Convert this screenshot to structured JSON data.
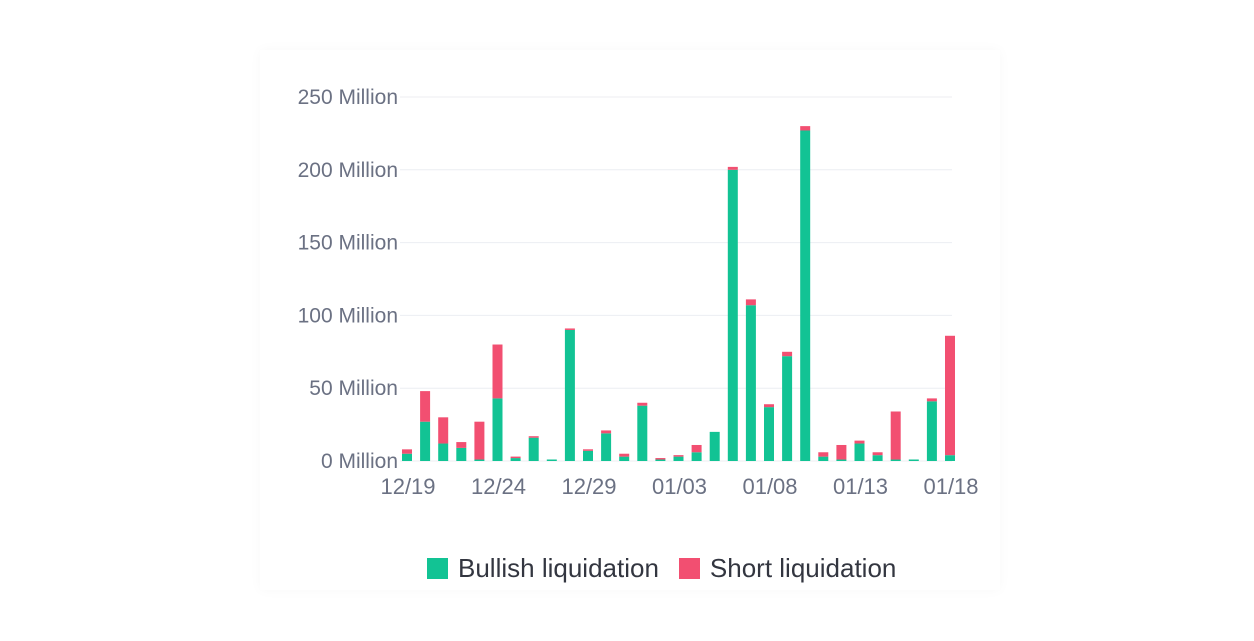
{
  "colors": {
    "bullish": "#12c394",
    "short": "#f24f71",
    "grid": "#eceef2",
    "axis_text": "#6b7183"
  },
  "legend": {
    "bullish_label": "Bullish liquidation",
    "short_label": "Short liquidation"
  },
  "chart_data": {
    "type": "bar",
    "stacked": true,
    "grid": true,
    "legend_position": "bottom",
    "ylim": [
      0,
      250
    ],
    "y_ticks": [
      0,
      50,
      100,
      150,
      200,
      250
    ],
    "y_tick_labels": [
      "0 Million",
      "50 Million",
      "100 Million",
      "150 Million",
      "200 Million",
      "250 Million"
    ],
    "x_tick_labels": [
      "12/19",
      "12/24",
      "12/29",
      "01/03",
      "01/08",
      "01/13",
      "01/18"
    ],
    "x_tick_indices": [
      0,
      5,
      10,
      15,
      20,
      25,
      30
    ],
    "categories": [
      "12/19",
      "12/20",
      "12/21",
      "12/22",
      "12/23",
      "12/24",
      "12/25",
      "12/26",
      "12/27",
      "12/28",
      "12/29",
      "12/30",
      "12/31",
      "01/01",
      "01/02",
      "01/03",
      "01/04",
      "01/05",
      "01/06",
      "01/07",
      "01/08",
      "01/09",
      "01/10",
      "01/11",
      "01/12",
      "01/13",
      "01/14",
      "01/15",
      "01/16",
      "01/17",
      "01/18"
    ],
    "series": [
      {
        "name": "Bullish liquidation",
        "color": "#12c394",
        "values": [
          5,
          27,
          12,
          9,
          1,
          43,
          2,
          16,
          1,
          90,
          7,
          19,
          3,
          38,
          1,
          3,
          6,
          20,
          200,
          107,
          37,
          72,
          227,
          3,
          1,
          12,
          4,
          1,
          1,
          41,
          4
        ]
      },
      {
        "name": "Short liquidation",
        "color": "#f24f71",
        "values": [
          3,
          21,
          18,
          4,
          26,
          37,
          1,
          1,
          0,
          1,
          1,
          2,
          2,
          2,
          1,
          1,
          5,
          0,
          2,
          4,
          2,
          3,
          3,
          3,
          10,
          2,
          2,
          33,
          0,
          2,
          82
        ]
      }
    ]
  }
}
